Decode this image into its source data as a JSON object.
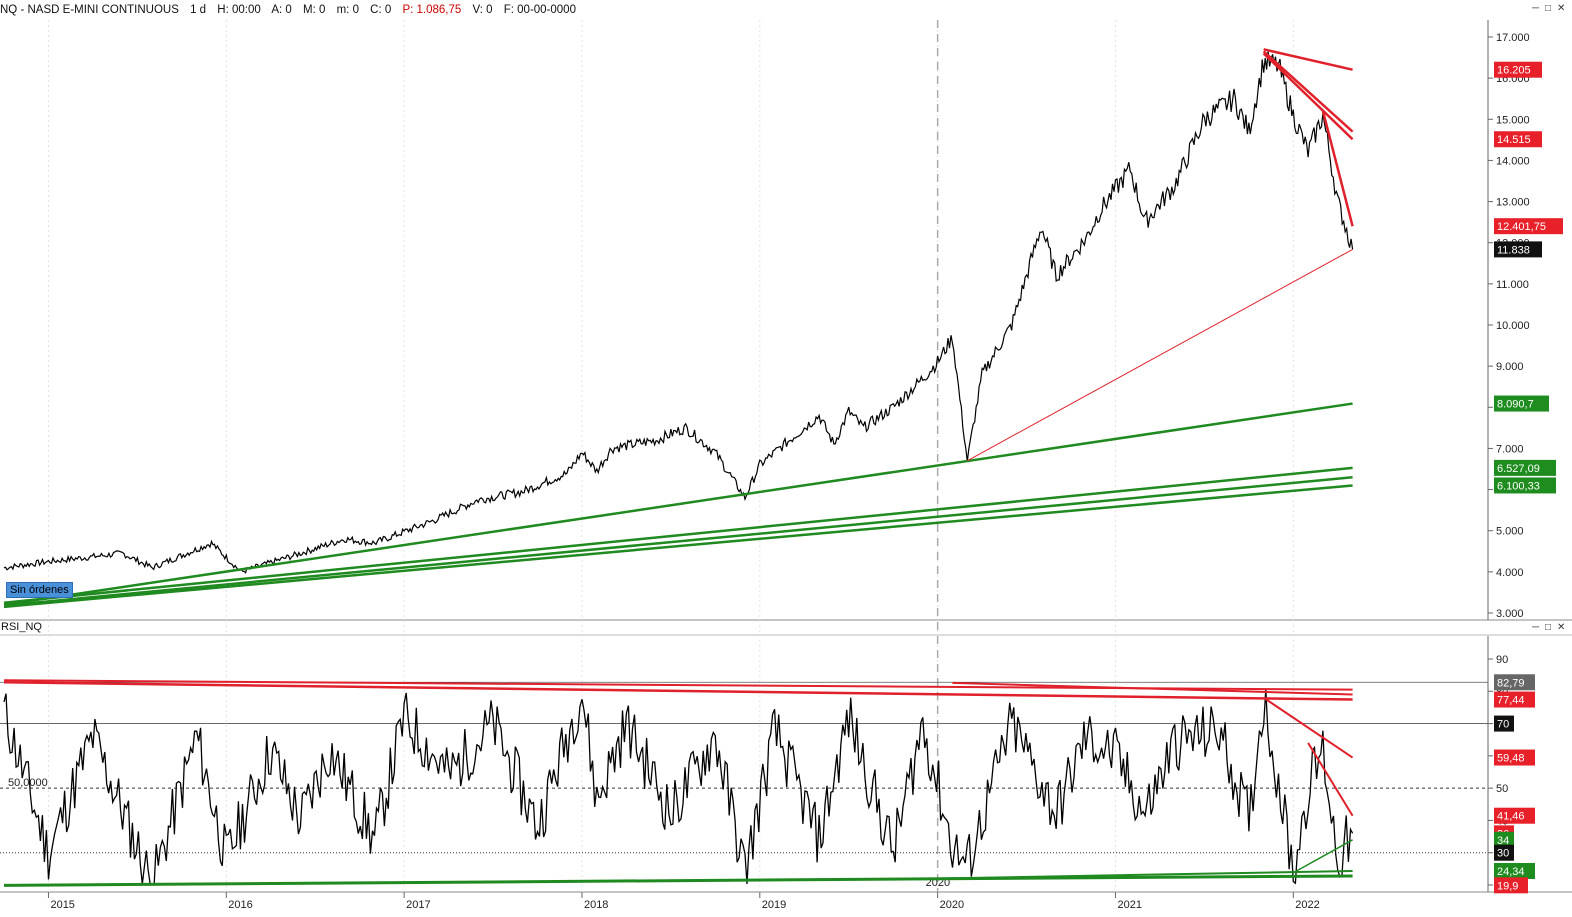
{
  "header": {
    "symbol": "NQ - NASD E-MINI CONTINUOUS",
    "period": "1 d",
    "h": "H: 00:00",
    "a": "A: 0",
    "m": "M: 0",
    "m2": "m: 0",
    "c": "C: 0",
    "p": "P: 1.086,75",
    "v": "V: 0",
    "f": "F: 00-00-0000"
  },
  "badge": "Sin órdenes",
  "rsi_title": "RSI_NQ",
  "colors": {
    "up_line": "#1f8a1f",
    "down_line": "#e0202a",
    "price": "#000000",
    "flag_red": "#e8202a",
    "flag_green": "#1e8c1e",
    "flag_black": "#111111"
  },
  "chart_data": [
    {
      "type": "line",
      "title": "NQ - NASD E-MINI CONTINUOUS",
      "x_ticks": [
        "2015",
        "2016",
        "2017",
        "2018",
        "2019",
        "2020",
        "2021",
        "2022"
      ],
      "y_ticks": [
        "17.000",
        "16.000",
        "15.000",
        "14.000",
        "13.000",
        "12.000",
        "11.000",
        "10.000",
        "9.000",
        "8.000",
        "7.000",
        "6.000",
        "5.000",
        "4.000",
        "3.000"
      ],
      "ylim": [
        2900,
        17500
      ],
      "series": [
        {
          "name": "NQ",
          "x": [
            "2014-10",
            "2015-01",
            "2015-06",
            "2015-08",
            "2015-12",
            "2016-02",
            "2016-06",
            "2016-09",
            "2016-11",
            "2017-03",
            "2017-06",
            "2017-09",
            "2017-12",
            "2018-01",
            "2018-02",
            "2018-03",
            "2018-06",
            "2018-08",
            "2018-10",
            "2018-12",
            "2019-01",
            "2019-05",
            "2019-06",
            "2019-07",
            "2019-08",
            "2019-10",
            "2019-12",
            "2020-01",
            "2020-02",
            "2020-03",
            "2020-04",
            "2020-06",
            "2020-08",
            "2020-09",
            "2020-11",
            "2020-12",
            "2021-02",
            "2021-03",
            "2021-05",
            "2021-07",
            "2021-09",
            "2021-10",
            "2021-11",
            "2021-12",
            "2022-01",
            "2022-02",
            "2022-03",
            "2022-04",
            "2022-05"
          ],
          "values": [
            4100,
            4250,
            4450,
            4100,
            4700,
            4000,
            4450,
            4800,
            4700,
            5250,
            5750,
            5950,
            6400,
            6900,
            6450,
            7000,
            7200,
            7500,
            6900,
            5800,
            6600,
            7800,
            7100,
            7900,
            7500,
            8000,
            8700,
            9100,
            9700,
            6700,
            8800,
            10000,
            12400,
            11200,
            12100,
            12800,
            13800,
            12500,
            13400,
            15000,
            15500,
            14700,
            16400,
            16300,
            15100,
            14200,
            15100,
            13000,
            11838
          ]
        }
      ],
      "levels": [
        {
          "label": "16.205",
          "value": 16205,
          "color": "red"
        },
        {
          "label": "14.515",
          "value": 14515,
          "color": "red"
        },
        {
          "label": "12.401,75",
          "value": 12401.75,
          "color": "red"
        },
        {
          "label": "11.838",
          "value": 11838,
          "color": "black"
        },
        {
          "label": "8.090,7",
          "value": 8090.7,
          "color": "green"
        },
        {
          "label": "6.527,09",
          "value": 6527.09,
          "color": "green"
        },
        {
          "label": "6.100,33",
          "value": 6100.33,
          "color": "green"
        }
      ],
      "trendlines": [
        {
          "color": "green",
          "from": [
            "2014-10",
            3200
          ],
          "to": [
            "2022-05",
            8090.7
          ]
        },
        {
          "color": "green",
          "from": [
            "2014-10",
            3250
          ],
          "to": [
            "2022-05",
            6527.09
          ]
        },
        {
          "color": "green",
          "from": [
            "2014-10",
            3180
          ],
          "to": [
            "2022-05",
            6300
          ]
        },
        {
          "color": "green",
          "from": [
            "2014-10",
            3150
          ],
          "to": [
            "2022-05",
            6100.33
          ]
        },
        {
          "color": "red",
          "from": [
            "2021-11",
            16700
          ],
          "to": [
            "2022-05",
            16205
          ]
        },
        {
          "color": "red",
          "from": [
            "2021-11",
            16650
          ],
          "to": [
            "2022-05",
            14700
          ]
        },
        {
          "color": "red",
          "from": [
            "2021-11",
            16600
          ],
          "to": [
            "2022-05",
            14515
          ]
        },
        {
          "color": "red",
          "from": [
            "2022-03",
            15200
          ],
          "to": [
            "2022-05",
            12401.75
          ]
        },
        {
          "color": "red",
          "from": [
            "2020-03",
            6700
          ],
          "to": [
            "2022-05",
            11838
          ]
        }
      ]
    },
    {
      "type": "line",
      "title": "RSI_NQ",
      "y_ticks": [
        "90",
        "80",
        "70",
        "60",
        "50",
        "40",
        "30",
        "20"
      ],
      "ylim": [
        16,
        96
      ],
      "reference_lines": [
        {
          "label": "50,0000",
          "value": 50
        },
        {
          "label": "30",
          "value": 30
        }
      ],
      "levels": [
        {
          "label": "82,79",
          "value": 82.79,
          "color": "gray"
        },
        {
          "label": "77,44",
          "value": 77.44,
          "color": "red"
        },
        {
          "label": "70",
          "value": 70,
          "color": "black"
        },
        {
          "label": "59,48",
          "value": 59.48,
          "color": "red"
        },
        {
          "label": "41,46",
          "value": 41.46,
          "color": "red"
        },
        {
          "label": "36",
          "value": 36,
          "color": "red"
        },
        {
          "label": "34",
          "value": 34,
          "color": "green"
        },
        {
          "label": "30",
          "value": 30,
          "color": "black"
        },
        {
          "label": "24,34",
          "value": 24.34,
          "color": "green"
        },
        {
          "label": "19,9",
          "value": 19.9,
          "color": "red"
        }
      ],
      "series": [
        {
          "name": "RSI",
          "x": [
            "2014-10",
            "2015-01",
            "2015-04",
            "2015-08",
            "2015-11",
            "2016-01",
            "2016-04",
            "2016-06",
            "2016-08",
            "2016-11",
            "2017-01",
            "2017-04",
            "2017-07",
            "2017-10",
            "2018-01",
            "2018-02",
            "2018-04",
            "2018-07",
            "2018-10",
            "2018-12",
            "2019-02",
            "2019-05",
            "2019-07",
            "2019-10",
            "2019-12",
            "2020-02",
            "2020-03",
            "2020-06",
            "2020-09",
            "2020-11",
            "2021-01",
            "2021-03",
            "2021-05",
            "2021-08",
            "2021-10",
            "2021-11",
            "2021-12",
            "2022-01",
            "2022-02",
            "2022-03",
            "2022-04",
            "2022-05"
          ],
          "values": [
            74,
            30,
            66,
            20,
            66,
            28,
            62,
            40,
            62,
            34,
            72,
            54,
            70,
            38,
            80,
            46,
            70,
            42,
            66,
            24,
            68,
            34,
            72,
            30,
            70,
            32,
            26,
            70,
            42,
            66,
            60,
            42,
            64,
            68,
            40,
            78,
            52,
            24,
            50,
            62,
            28,
            36
          ]
        }
      ]
    }
  ]
}
